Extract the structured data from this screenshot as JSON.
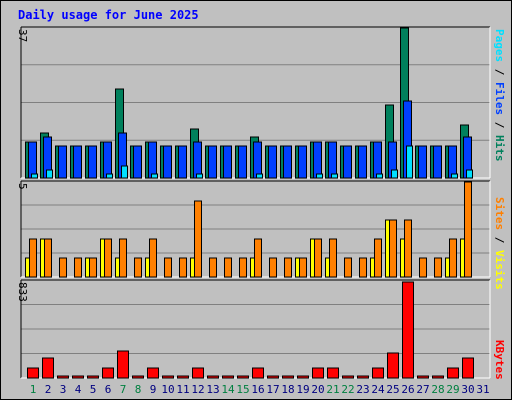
{
  "colors": {
    "background": "#c0c0c0",
    "plot_bg": "#c0c0c0",
    "grid": "#808080",
    "hits": "#00805c",
    "files": "#0040ff",
    "pages": "#00e0ff",
    "visits": "#ffff00",
    "sites": "#ff8000",
    "kbytes": "#ff0000",
    "title": "#0000ff",
    "weekday_label": "#000080",
    "weekend_label": "#008040"
  },
  "chart_data": [
    {
      "type": "bar",
      "title": "Daily usage for June 2025",
      "ymax_label": "37",
      "ylim": [
        0,
        37
      ],
      "y_axis_title_parts": [
        "Pages",
        " / ",
        "Files",
        " / ",
        "Hits"
      ],
      "categories": [
        "1",
        "2",
        "3",
        "4",
        "5",
        "6",
        "7",
        "8",
        "9",
        "10",
        "11",
        "12",
        "13",
        "14",
        "15",
        "16",
        "17",
        "18",
        "19",
        "20",
        "21",
        "22",
        "23",
        "24",
        "25",
        "26",
        "27",
        "28",
        "29",
        "30",
        "31"
      ],
      "weekend_days": [
        "1",
        "7",
        "8",
        "14",
        "15",
        "21",
        "22",
        "28",
        "29"
      ],
      "grid": true,
      "series": [
        {
          "name": "Hits",
          "values": [
            9,
            11,
            8,
            8,
            8,
            9,
            22,
            8,
            9,
            8,
            8,
            12,
            8,
            8,
            8,
            10,
            8,
            8,
            8,
            9,
            9,
            8,
            8,
            9,
            18,
            37,
            8,
            8,
            8,
            13,
            0
          ]
        },
        {
          "name": "Files",
          "values": [
            9,
            10,
            8,
            8,
            8,
            9,
            11,
            8,
            9,
            8,
            8,
            9,
            8,
            8,
            8,
            9,
            8,
            8,
            8,
            9,
            9,
            8,
            8,
            9,
            9,
            19,
            8,
            8,
            8,
            10,
            0
          ]
        },
        {
          "name": "Pages",
          "values": [
            1,
            2,
            0,
            0,
            0,
            1,
            3,
            0,
            1,
            0,
            0,
            1,
            0,
            0,
            0,
            1,
            0,
            0,
            0,
            1,
            1,
            0,
            0,
            1,
            2,
            8,
            0,
            0,
            1,
            2,
            0
          ]
        }
      ]
    },
    {
      "type": "bar",
      "ymax_label": "5",
      "ylim": [
        0,
        5
      ],
      "y_axis_title_parts": [
        "Sites",
        " / ",
        "Visits"
      ],
      "categories": [
        "1",
        "2",
        "3",
        "4",
        "5",
        "6",
        "7",
        "8",
        "9",
        "10",
        "11",
        "12",
        "13",
        "14",
        "15",
        "16",
        "17",
        "18",
        "19",
        "20",
        "21",
        "22",
        "23",
        "24",
        "25",
        "26",
        "27",
        "28",
        "29",
        "30",
        "31"
      ],
      "grid": true,
      "series": [
        {
          "name": "Sites",
          "values": [
            2,
            2,
            1,
            1,
            1,
            2,
            2,
            1,
            2,
            1,
            1,
            4,
            1,
            1,
            1,
            2,
            1,
            1,
            1,
            2,
            2,
            1,
            1,
            2,
            3,
            3,
            1,
            1,
            2,
            5,
            0
          ]
        },
        {
          "name": "Visits",
          "values": [
            1,
            2,
            0,
            0,
            1,
            2,
            1,
            0,
            1,
            0,
            0,
            1,
            0,
            0,
            0,
            1,
            0,
            0,
            1,
            2,
            1,
            0,
            0,
            1,
            3,
            2,
            0,
            0,
            1,
            2,
            0
          ]
        }
      ]
    },
    {
      "type": "bar",
      "ymax_label": "833",
      "ylim": [
        0,
        833
      ],
      "y_axis_title_parts": [
        "KBytes"
      ],
      "categories": [
        "1",
        "2",
        "3",
        "4",
        "5",
        "6",
        "7",
        "8",
        "9",
        "10",
        "11",
        "12",
        "13",
        "14",
        "15",
        "16",
        "17",
        "18",
        "19",
        "20",
        "21",
        "22",
        "23",
        "24",
        "25",
        "26",
        "27",
        "28",
        "29",
        "30",
        "31"
      ],
      "grid": true,
      "series": [
        {
          "name": "KBytes",
          "values": [
            90,
            170,
            10,
            10,
            10,
            90,
            230,
            10,
            90,
            10,
            10,
            90,
            10,
            10,
            10,
            90,
            10,
            10,
            10,
            90,
            90,
            10,
            10,
            90,
            220,
            833,
            10,
            10,
            90,
            170,
            0
          ]
        }
      ]
    }
  ]
}
